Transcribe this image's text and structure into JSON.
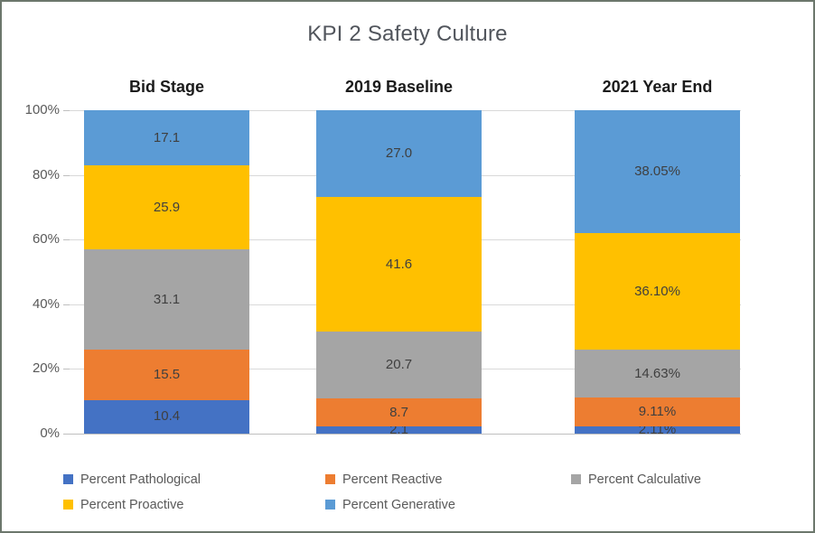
{
  "chart_data": {
    "type": "bar",
    "stacked": true,
    "percent_stacked": true,
    "title": "KPI 2 Safety Culture",
    "categories": [
      "Bid Stage",
      "2019 Baseline",
      "2021 Year End"
    ],
    "series": [
      {
        "name": "Percent Pathological",
        "color": "#4472C4",
        "values": [
          10.4,
          2.1,
          2.11
        ],
        "labels": [
          "10.4",
          "2.1",
          "2.11%"
        ]
      },
      {
        "name": "Percent Reactive",
        "color": "#ED7D31",
        "values": [
          15.5,
          8.7,
          9.11
        ],
        "labels": [
          "15.5",
          "8.7",
          "9.11%"
        ]
      },
      {
        "name": "Percent Calculative",
        "color": "#A5A5A5",
        "values": [
          31.1,
          20.7,
          14.63
        ],
        "labels": [
          "31.1",
          "20.7",
          "14.63%"
        ]
      },
      {
        "name": "Percent Proactive",
        "color": "#FFC000",
        "values": [
          25.9,
          41.6,
          36.1
        ],
        "labels": [
          "25.9",
          "41.6",
          "36.10%"
        ]
      },
      {
        "name": "Percent Generative",
        "color": "#5B9BD5",
        "values": [
          17.1,
          27.0,
          38.05
        ],
        "labels": [
          "17.1",
          "27.0",
          "38.05%"
        ]
      }
    ],
    "y_axis": {
      "min": 0,
      "max": 100,
      "ticks": [
        "0%",
        "20%",
        "40%",
        "60%",
        "80%",
        "100%"
      ],
      "gridlines": true
    },
    "legend": {
      "position": "bottom",
      "entries": [
        "Percent Pathological",
        "Percent Reactive",
        "Percent Calculative",
        "Percent Proactive",
        "Percent Generative"
      ]
    },
    "style": {
      "gridline_color": "#d9d9d9",
      "axis_line_color": "#bfbfbf",
      "label_color": "#3f3f3f",
      "title_color": "#51555c",
      "frame_border_color": "#6c776c"
    }
  }
}
